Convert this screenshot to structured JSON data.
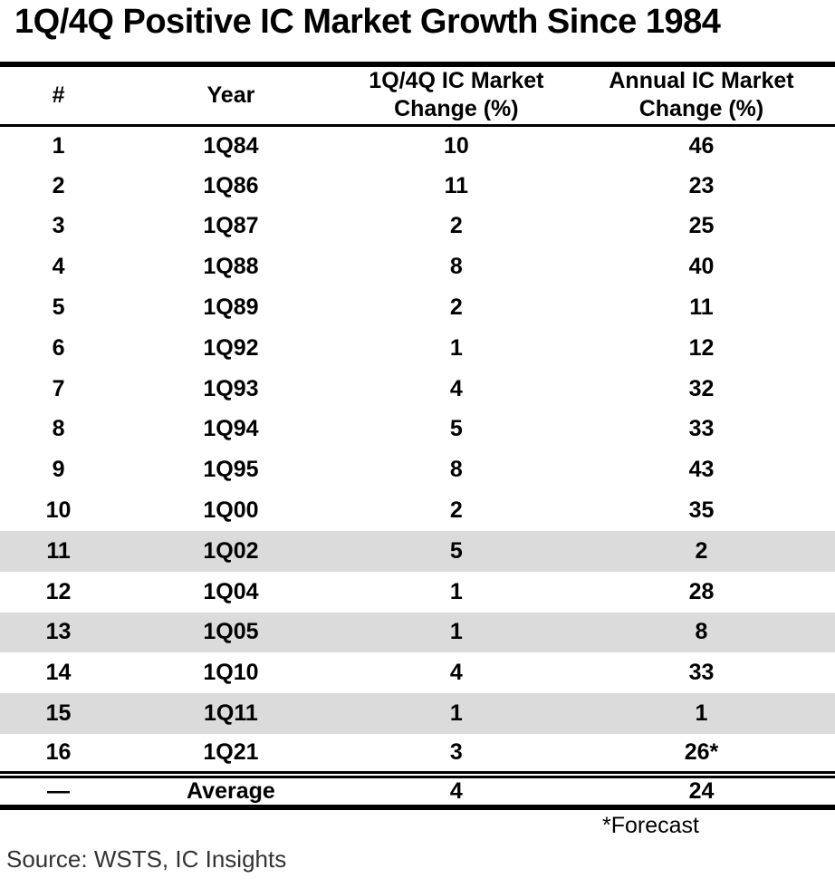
{
  "title": "1Q/4Q Positive IC Market Growth Since 1984",
  "table": {
    "headers": [
      "#",
      "Year",
      "1Q/4Q IC Market\nChange (%)",
      "Annual IC Market\nChange (%)"
    ],
    "rows": [
      {
        "num": "1",
        "year": "1Q84",
        "q_change": "10",
        "annual_change": "46",
        "highlight": false
      },
      {
        "num": "2",
        "year": "1Q86",
        "q_change": "11",
        "annual_change": "23",
        "highlight": false
      },
      {
        "num": "3",
        "year": "1Q87",
        "q_change": "2",
        "annual_change": "25",
        "highlight": false
      },
      {
        "num": "4",
        "year": "1Q88",
        "q_change": "8",
        "annual_change": "40",
        "highlight": false
      },
      {
        "num": "5",
        "year": "1Q89",
        "q_change": "2",
        "annual_change": "11",
        "highlight": false
      },
      {
        "num": "6",
        "year": "1Q92",
        "q_change": "1",
        "annual_change": "12",
        "highlight": false
      },
      {
        "num": "7",
        "year": "1Q93",
        "q_change": "4",
        "annual_change": "32",
        "highlight": false
      },
      {
        "num": "8",
        "year": "1Q94",
        "q_change": "5",
        "annual_change": "33",
        "highlight": false
      },
      {
        "num": "9",
        "year": "1Q95",
        "q_change": "8",
        "annual_change": "43",
        "highlight": false
      },
      {
        "num": "10",
        "year": "1Q00",
        "q_change": "2",
        "annual_change": "35",
        "highlight": false
      },
      {
        "num": "11",
        "year": "1Q02",
        "q_change": "5",
        "annual_change": "2",
        "highlight": true
      },
      {
        "num": "12",
        "year": "1Q04",
        "q_change": "1",
        "annual_change": "28",
        "highlight": false
      },
      {
        "num": "13",
        "year": "1Q05",
        "q_change": "1",
        "annual_change": "8",
        "highlight": true
      },
      {
        "num": "14",
        "year": "1Q10",
        "q_change": "4",
        "annual_change": "33",
        "highlight": false
      },
      {
        "num": "15",
        "year": "1Q11",
        "q_change": "1",
        "annual_change": "1",
        "highlight": true
      },
      {
        "num": "16",
        "year": "1Q21",
        "q_change": "3",
        "annual_change": "26*",
        "highlight": false
      }
    ],
    "average_row": {
      "num": "—",
      "year": "Average",
      "q_change": "4",
      "annual_change": "24"
    }
  },
  "footnote": "*Forecast",
  "source": "Source: WSTS, IC Insights",
  "colors": {
    "highlight_row": "#dbdbdb",
    "text": "#000000",
    "border": "#000000"
  },
  "chart_data": {
    "type": "table",
    "title": "1Q/4Q Positive IC Market Growth Since 1984",
    "columns": [
      "#",
      "Year",
      "1Q/4Q IC Market Change (%)",
      "Annual IC Market Change (%)"
    ],
    "rows": [
      [
        1,
        "1Q84",
        10,
        46
      ],
      [
        2,
        "1Q86",
        11,
        23
      ],
      [
        3,
        "1Q87",
        2,
        25
      ],
      [
        4,
        "1Q88",
        8,
        40
      ],
      [
        5,
        "1Q89",
        2,
        11
      ],
      [
        6,
        "1Q92",
        1,
        12
      ],
      [
        7,
        "1Q93",
        4,
        32
      ],
      [
        8,
        "1Q94",
        5,
        33
      ],
      [
        9,
        "1Q95",
        8,
        43
      ],
      [
        10,
        "1Q00",
        2,
        35
      ],
      [
        11,
        "1Q02",
        5,
        2
      ],
      [
        12,
        "1Q04",
        1,
        28
      ],
      [
        13,
        "1Q05",
        1,
        8
      ],
      [
        14,
        "1Q10",
        4,
        33
      ],
      [
        15,
        "1Q11",
        1,
        1
      ],
      [
        16,
        "1Q21",
        3,
        "26* (forecast)"
      ]
    ],
    "average": [
      "—",
      "Average",
      4,
      24
    ],
    "highlighted_row_numbers": [
      11,
      13,
      15
    ],
    "annotations": [
      "*Forecast",
      "Source: WSTS, IC Insights"
    ]
  }
}
